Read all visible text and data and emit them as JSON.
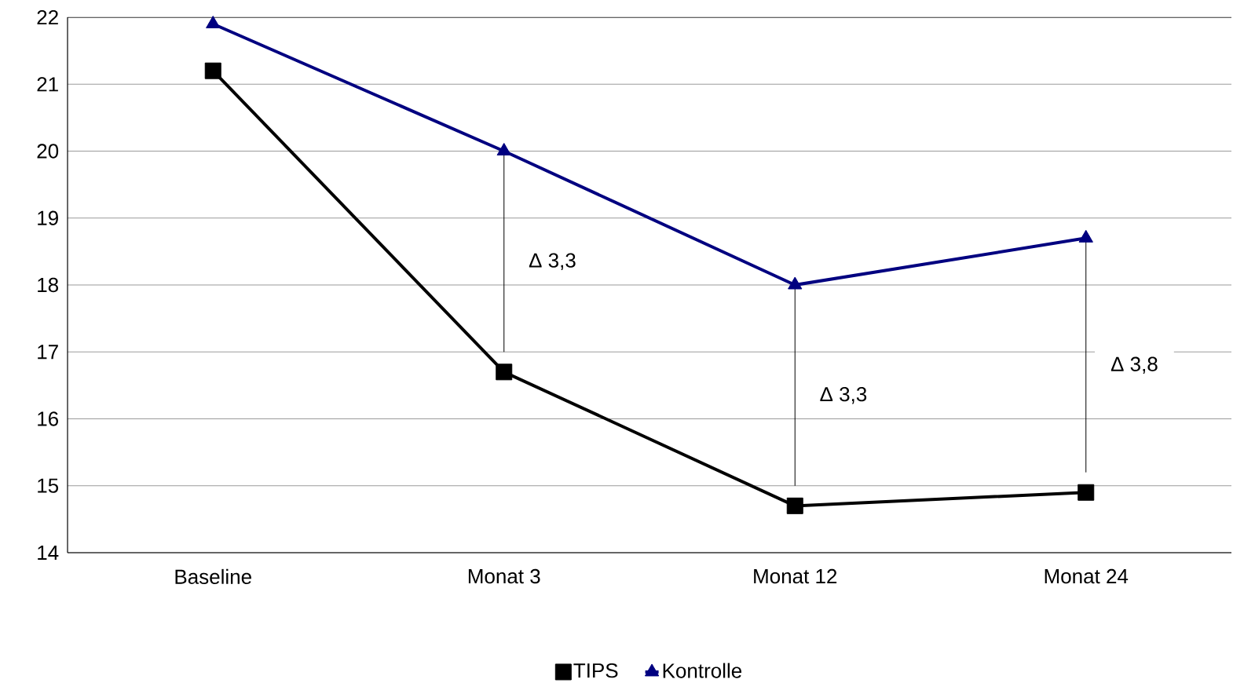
{
  "chart_data": {
    "type": "line",
    "categories": [
      "Baseline",
      "Monat 3",
      "Monat 12",
      "Monat 24"
    ],
    "series": [
      {
        "name": "TIPS",
        "color": "#000000",
        "marker": "square",
        "values": [
          21.2,
          16.7,
          14.7,
          14.9
        ]
      },
      {
        "name": "Kontrolle",
        "color": "#000080",
        "marker": "triangle",
        "values": [
          21.9,
          20.0,
          18.0,
          18.7
        ],
        "errors": [
          null,
          [
            17.0,
            20.0
          ],
          [
            15.0,
            18.0
          ],
          [
            15.2,
            18.7
          ]
        ]
      }
    ],
    "ylim": [
      14,
      22
    ],
    "yticks": [
      14,
      15,
      16,
      17,
      18,
      19,
      20,
      21,
      22
    ],
    "grid": "y",
    "legend": "bottom",
    "line_style": "solid",
    "annotations": [
      "Δ 3,3",
      "Δ 3,3",
      "Δ 3,8"
    ]
  }
}
